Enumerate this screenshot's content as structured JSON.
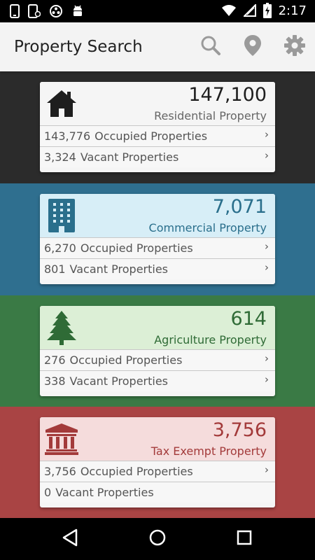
{
  "status_bar": {
    "time": "2:17",
    "left_icons": [
      "phone-icon",
      "phone-sync-icon",
      "circles-icon",
      "android-icon"
    ],
    "right_icons": [
      "wifi-icon",
      "signal-icon",
      "battery-charging-icon"
    ]
  },
  "app_bar": {
    "title": "Property Search",
    "actions": [
      "search-icon",
      "location-pin-icon",
      "gear-icon"
    ]
  },
  "sections": [
    {
      "key": "residential",
      "count": "147,100",
      "type_label": "Residential Property",
      "icon": "house-icon",
      "band_color": "#2b2b2b",
      "card_head_color": "#f5f5f5",
      "accent_color": "#1e1e1e",
      "label_color": "#666666",
      "rows": [
        {
          "num": "143,776",
          "label": "Occupied Properties",
          "chevron": true
        },
        {
          "num": "3,324",
          "label": "Vacant Properties",
          "chevron": true
        }
      ]
    },
    {
      "key": "commercial",
      "count": "7,071",
      "type_label": "Commercial Property",
      "icon": "office-building-icon",
      "band_color": "#2f6f8f",
      "card_head_color": "#d7eef7",
      "accent_color": "#2a6f8c",
      "label_color": "#2a6f8c",
      "rows": [
        {
          "num": "6,270",
          "label": "Occupied Properties",
          "chevron": true
        },
        {
          "num": "801",
          "label": "Vacant Properties",
          "chevron": true
        }
      ]
    },
    {
      "key": "agriculture",
      "count": "614",
      "type_label": "Agriculture Property",
      "icon": "tree-icon",
      "band_color": "#3a7a45",
      "card_head_color": "#dcefd6",
      "accent_color": "#2f6b36",
      "label_color": "#2f6b36",
      "rows": [
        {
          "num": "276",
          "label": "Occupied Properties",
          "chevron": true
        },
        {
          "num": "338",
          "label": "Vacant Properties",
          "chevron": true
        }
      ]
    },
    {
      "key": "tax_exempt",
      "count": "3,756",
      "type_label": "Tax Exempt Property",
      "icon": "government-building-icon",
      "band_color": "#a94444",
      "card_head_color": "#f5dcdc",
      "accent_color": "#a33a3a",
      "label_color": "#a33a3a",
      "rows": [
        {
          "num": "3,756",
          "label": "Occupied Properties",
          "chevron": true
        },
        {
          "num": "0",
          "label": "Vacant Properties",
          "chevron": false
        }
      ]
    }
  ],
  "nav_bar": {
    "buttons": [
      "back-icon",
      "home-icon",
      "recents-icon"
    ]
  }
}
